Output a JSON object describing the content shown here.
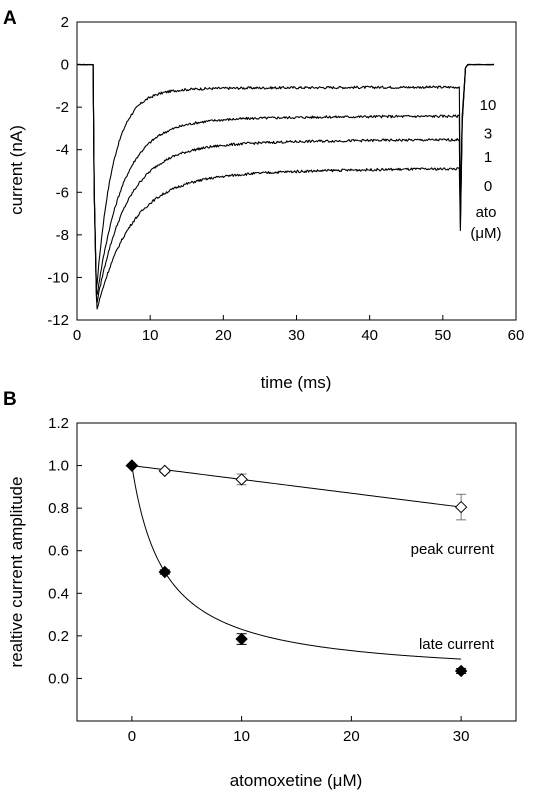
{
  "chart_data": [
    {
      "panel": "A",
      "type": "line",
      "xlabel": "time (ms)",
      "ylabel": "current (nA)",
      "xlim": [
        0,
        60
      ],
      "ylim": [
        -12,
        2
      ],
      "x_ticks": [
        0,
        10,
        20,
        30,
        40,
        50,
        60
      ],
      "y_ticks": [
        -12,
        -10,
        -8,
        -6,
        -4,
        -2,
        0,
        2
      ],
      "pulse": {
        "start_ms": 2.2,
        "end_ms": 52.2
      },
      "series": [
        {
          "name": "10",
          "peak": -10.5,
          "late": -1.05,
          "tau": 2.3,
          "tail_peak": -6.8,
          "x": [
            0,
            2,
            2.8,
            5,
            10,
            20,
            30,
            40,
            50,
            52,
            53,
            57
          ],
          "y": [
            0,
            0,
            -10.5,
            -3.4,
            -1.3,
            -1.1,
            -1.1,
            -1.08,
            -1.05,
            -1.05,
            -0.1,
            0
          ]
        },
        {
          "name": "3",
          "peak": -10.7,
          "late": -2.4,
          "tau": 3.5,
          "tail_peak": -7.3,
          "x": [
            0,
            2,
            2.8,
            5,
            10,
            20,
            30,
            40,
            50,
            52,
            53,
            57
          ],
          "y": [
            0,
            0,
            -10.7,
            -5.4,
            -3.0,
            -2.7,
            -2.55,
            -2.45,
            -2.4,
            -2.4,
            -0.1,
            0
          ]
        },
        {
          "name": "1",
          "peak": -10.8,
          "late": -3.5,
          "tau": 4.0,
          "tail_peak": -7.6,
          "x": [
            0,
            2,
            2.8,
            5,
            10,
            20,
            30,
            40,
            50,
            52,
            53,
            57
          ],
          "y": [
            0,
            0,
            -10.8,
            -6.3,
            -4.4,
            -4.0,
            -3.8,
            -3.65,
            -3.5,
            -3.5,
            -0.1,
            0
          ]
        },
        {
          "name": "0",
          "peak": -10.9,
          "late": -4.85,
          "tau": 4.5,
          "tail_peak": -7.8,
          "x": [
            0,
            2,
            2.8,
            5,
            10,
            20,
            30,
            40,
            50,
            52,
            53,
            57
          ],
          "y": [
            0,
            0,
            -10.9,
            -7.2,
            -5.6,
            -5.3,
            -5.1,
            -5.0,
            -4.85,
            -4.85,
            -0.1,
            0
          ]
        }
      ],
      "legend_title": [
        "ato",
        "(μM)"
      ]
    },
    {
      "panel": "B",
      "type": "scatter",
      "xlabel": "atomoxetine (μM)",
      "ylabel": "realtive current amplitude",
      "xlim": [
        -5,
        35
      ],
      "ylim": [
        -0.2,
        1.2
      ],
      "x_ticks": [
        0,
        10,
        20,
        30
      ],
      "y_ticks": [
        0.0,
        0.2,
        0.4,
        0.6,
        0.8,
        1.0,
        1.2
      ],
      "series": [
        {
          "name": "peak current",
          "marker": "open-diamond",
          "x": [
            0,
            3,
            10,
            30
          ],
          "y": [
            1.0,
            0.975,
            0.935,
            0.805
          ],
          "err": [
            0,
            0.008,
            0.025,
            0.06
          ],
          "fit_slope": -0.0065
        },
        {
          "name": "late current",
          "marker": "filled-diamond",
          "x": [
            0,
            3,
            10,
            30
          ],
          "y": [
            1.0,
            0.5,
            0.185,
            0.035
          ],
          "err": [
            0,
            0.01,
            0.025,
            0.012
          ],
          "fit_ic50": 3.0,
          "fit_hill": 1.0
        }
      ]
    }
  ],
  "panel_letters": [
    "A",
    "B"
  ],
  "colors": {
    "line": "#000000",
    "background": "#ffffff",
    "open_marker_fill": "#ffffff"
  }
}
